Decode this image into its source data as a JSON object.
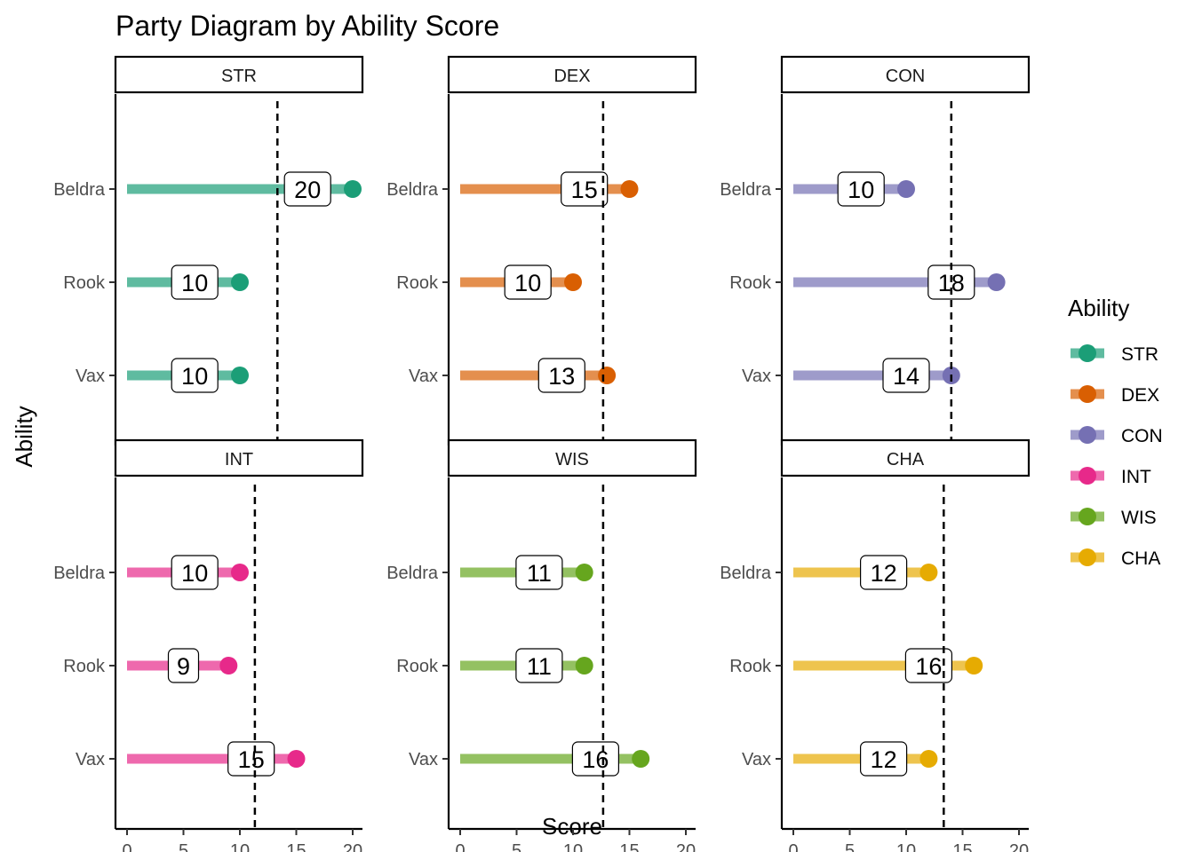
{
  "title": "Party Diagram by Ability Score",
  "xlabel": "Score",
  "ylabel": "Ability",
  "legend": {
    "title": "Ability",
    "placement": "right",
    "items": [
      {
        "label": "STR",
        "color": "#1b9e77"
      },
      {
        "label": "DEX",
        "color": "#d95f02"
      },
      {
        "label": "CON",
        "color": "#7570b3"
      },
      {
        "label": "INT",
        "color": "#e7298a"
      },
      {
        "label": "WIS",
        "color": "#66a61e"
      },
      {
        "label": "CHA",
        "color": "#e6ab02"
      }
    ]
  },
  "chart_data": {
    "type": "lollipop",
    "xlim": [
      0,
      20
    ],
    "x_ticks": [
      "0",
      "5",
      "10",
      "15",
      "20"
    ],
    "categories": [
      "Beldra",
      "Rook",
      "Vax"
    ],
    "grid": false,
    "reference_line": "dashed vertical line at the party mean",
    "panels": [
      {
        "name": "STR",
        "color": "#1b9e77",
        "values": [
          20,
          10,
          10
        ],
        "mean": 13.33
      },
      {
        "name": "DEX",
        "color": "#d95f02",
        "values": [
          15,
          10,
          13
        ],
        "mean": 12.67
      },
      {
        "name": "CON",
        "color": "#7570b3",
        "values": [
          10,
          18,
          14
        ],
        "mean": 14
      },
      {
        "name": "INT",
        "color": "#e7298a",
        "values": [
          10,
          9,
          15
        ],
        "mean": 11.33
      },
      {
        "name": "WIS",
        "color": "#66a61e",
        "values": [
          11,
          11,
          16
        ],
        "mean": 12.67
      },
      {
        "name": "CHA",
        "color": "#e6ab02",
        "values": [
          12,
          16,
          12
        ],
        "mean": 13.33
      }
    ]
  }
}
